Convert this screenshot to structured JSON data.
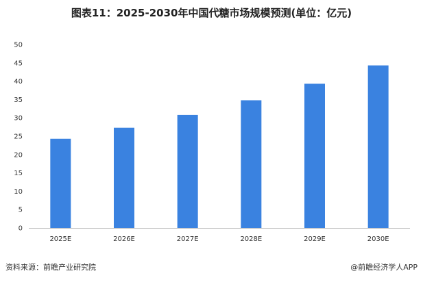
{
  "title": "图表11：2025-2030年中国代糖市场规模预测(单位：亿元)",
  "source": "资料来源：前瞻产业研究院",
  "brand": "@前瞻经济学人APP",
  "colors": {
    "bar": "#3a82e0",
    "axis": "#bbbbbb"
  },
  "chart_data": {
    "type": "bar",
    "categories": [
      "2025E",
      "2026E",
      "2027E",
      "2028E",
      "2029E",
      "2030E"
    ],
    "values": [
      24.3,
      27.3,
      30.8,
      34.8,
      39.3,
      44.3
    ],
    "ylim": [
      0,
      50
    ],
    "yticks": [
      0,
      5,
      10,
      15,
      20,
      25,
      30,
      35,
      40,
      45,
      50
    ],
    "grid": false,
    "title": "图表11：2025-2030年中国代糖市场规模预测(单位：亿元)",
    "xlabel": "",
    "ylabel": ""
  }
}
